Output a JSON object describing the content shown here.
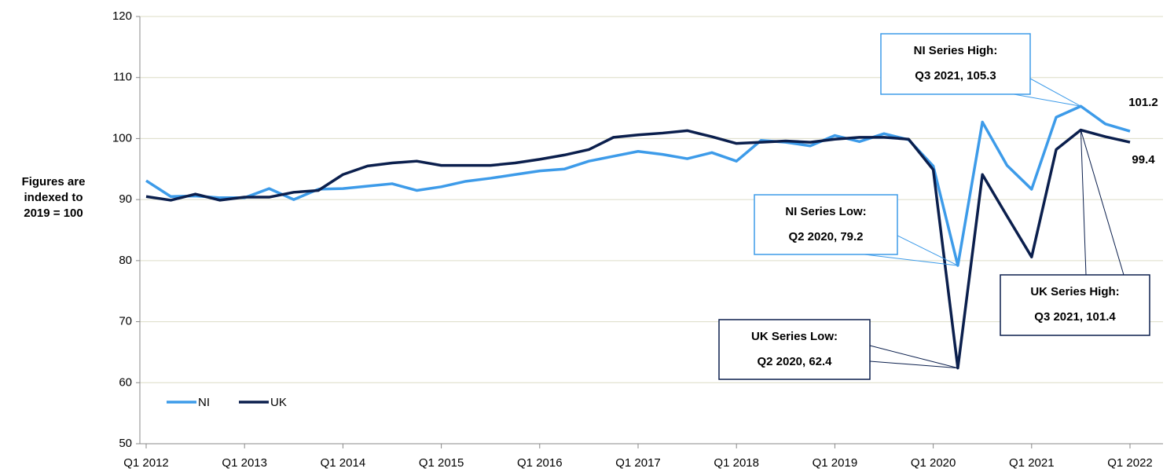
{
  "chart_data": {
    "type": "line",
    "y_label": [
      "Figures are",
      "indexed to",
      "2019 = 100"
    ],
    "categories": [
      "Q1 2012",
      null,
      null,
      null,
      "Q1 2013",
      null,
      null,
      null,
      "Q1 2014",
      null,
      null,
      null,
      "Q1 2015",
      null,
      null,
      null,
      "Q1 2016",
      null,
      null,
      null,
      "Q1 2017",
      null,
      null,
      null,
      "Q1 2018",
      null,
      null,
      null,
      "Q1 2019",
      null,
      null,
      null,
      "Q1 2020",
      null,
      null,
      null,
      "Q1 2021",
      null,
      null,
      null,
      "Q1 2022"
    ],
    "series": [
      {
        "name": "NI",
        "color": "#3d9be9",
        "values": [
          93.1,
          90.5,
          90.6,
          90.3,
          90.3,
          91.8,
          90.0,
          91.7,
          91.8,
          92.2,
          92.6,
          91.5,
          92.1,
          93.0,
          93.5,
          94.1,
          94.7,
          95.0,
          96.3,
          97.1,
          97.9,
          97.4,
          96.7,
          97.7,
          96.3,
          99.7,
          99.4,
          98.8,
          100.5,
          99.5,
          100.8,
          99.8,
          95.5,
          79.2,
          102.7,
          95.6,
          91.7,
          103.5,
          105.3,
          102.4,
          101.2
        ]
      },
      {
        "name": "UK",
        "color": "#0b1f4d",
        "values": [
          90.5,
          89.9,
          90.9,
          89.9,
          90.4,
          90.4,
          91.2,
          91.5,
          94.1,
          95.5,
          96.0,
          96.3,
          95.6,
          95.6,
          95.6,
          96.0,
          96.6,
          97.3,
          98.2,
          100.2,
          100.6,
          100.9,
          101.3,
          100.3,
          99.2,
          99.4,
          99.6,
          99.4,
          99.9,
          100.2,
          100.2,
          99.9,
          94.9,
          62.4,
          94.1,
          87.3,
          80.6,
          98.2,
          101.4,
          100.3,
          99.4
        ]
      }
    ],
    "ylim": [
      50,
      120
    ],
    "yticks": [
      50,
      60,
      70,
      80,
      90,
      100,
      110,
      120
    ],
    "grid": true,
    "legend": "lower left",
    "annotations": [
      {
        "lines": [
          "NI Series High:",
          "Q3 2021, 105.3"
        ]
      },
      {
        "lines": [
          "NI Series Low:",
          "Q2 2020, 79.2"
        ]
      },
      {
        "lines": [
          "UK Series Low:",
          "Q2 2020, 62.4"
        ]
      },
      {
        "lines": [
          "UK Series High:",
          "Q3 2021, 101.4"
        ]
      }
    ]
  }
}
